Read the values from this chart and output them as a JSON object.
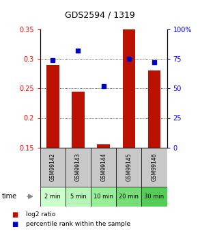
{
  "title": "GDS2594 / 1319",
  "categories": [
    "GSM99142",
    "GSM99143",
    "GSM99144",
    "GSM99145",
    "GSM99146"
  ],
  "time_labels": [
    "2 min",
    "5 min",
    "10 min",
    "20 min",
    "30 min"
  ],
  "bar_values": [
    0.29,
    0.245,
    0.155,
    0.35,
    0.28
  ],
  "dot_values_right": [
    74,
    82,
    52,
    75,
    72
  ],
  "bar_color": "#bb1100",
  "dot_color": "#0000cc",
  "ylim_left": [
    0.15,
    0.35
  ],
  "ylim_right": [
    0,
    100
  ],
  "yticks_left": [
    0.15,
    0.2,
    0.25,
    0.3,
    0.35
  ],
  "ytick_labels_left": [
    "0.15",
    "0.2",
    "0.25",
    "0.3",
    "0.35"
  ],
  "yticks_right": [
    0,
    25,
    50,
    75,
    100
  ],
  "ytick_labels_right": [
    "0",
    "25",
    "50",
    "75",
    "100%"
  ],
  "grid_yticks": [
    0.2,
    0.25,
    0.3
  ],
  "bar_width": 0.5,
  "background_color": "#ffffff",
  "cell_gray": "#c8c8c8",
  "green_colors": [
    "#ccffcc",
    "#b8f5b8",
    "#99ee99",
    "#77dd77",
    "#55cc55"
  ],
  "legend_red_label": "log2 ratio",
  "legend_blue_label": "percentile rank within the sample"
}
